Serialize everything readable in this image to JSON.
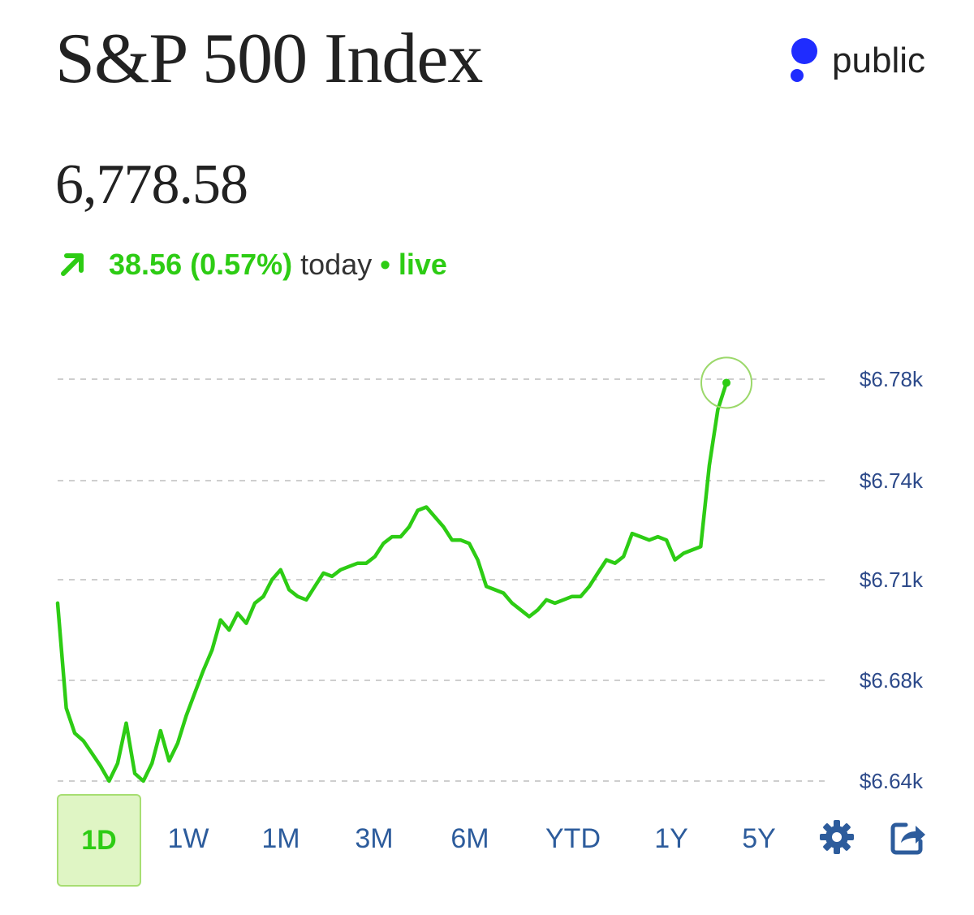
{
  "header": {
    "title": "S&P 500 Index",
    "brand": "public",
    "price": "6,778.58",
    "change": "38.56 (0.57%)",
    "change_suffix": "today",
    "separator": "•",
    "live": "live"
  },
  "colors": {
    "up": "#2dcc14",
    "brand": "#1f2cff",
    "axis_text": "#2d4a8a",
    "tab_text": "#2d5c9c"
  },
  "chart_data": {
    "type": "line",
    "title": "S&P 500 Index",
    "xlabel": "",
    "ylabel": "",
    "ylim": [
      6630,
      6790
    ],
    "y_ticks": [
      6780,
      6740,
      6710,
      6680,
      6640
    ],
    "y_tick_labels": [
      "$6.78k",
      "$6.74k",
      "$6.71k",
      "$6.68k",
      "$6.64k"
    ],
    "gridlines": true,
    "last_value": 6778.58,
    "series": [
      {
        "name": "S&P 500",
        "values": [
          6703,
          6669,
          6659,
          6656,
          6651,
          6646,
          6640,
          6647,
          6663,
          6643,
          6640,
          6647,
          6660,
          6648,
          6655,
          6666,
          6675,
          6683,
          6689,
          6698,
          6695,
          6700,
          6697,
          6703,
          6705,
          6710,
          6713,
          6707,
          6705,
          6704,
          6708,
          6712,
          6711,
          6713,
          6714,
          6715,
          6715,
          6717,
          6721,
          6723,
          6723,
          6726,
          6731,
          6732,
          6729,
          6726,
          6722,
          6722,
          6721,
          6716,
          6708,
          6707,
          6706,
          6703,
          6701,
          6699,
          6701,
          6704,
          6703,
          6704,
          6705,
          6705,
          6708,
          6712,
          6716,
          6715,
          6717,
          6724,
          6723,
          6722,
          6723,
          6722,
          6716,
          6718,
          6719,
          6720,
          6746,
          6768,
          6778.58
        ]
      }
    ]
  },
  "tabs": [
    "1D",
    "1W",
    "1M",
    "3M",
    "6M",
    "YTD",
    "1Y",
    "5Y"
  ],
  "active_tab": "1D",
  "icons": {
    "settings": "gear-icon",
    "share": "share-icon",
    "change": "arrow-up-right-icon"
  }
}
